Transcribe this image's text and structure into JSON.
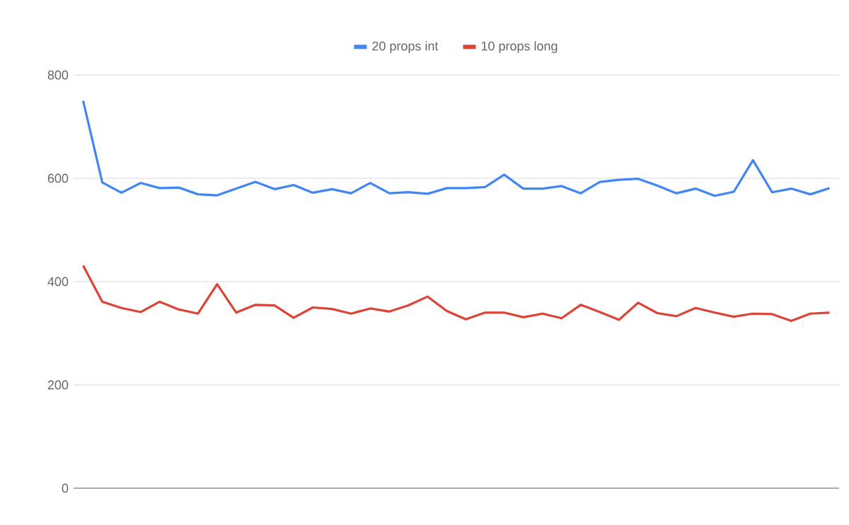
{
  "chart_data": {
    "type": "line",
    "categories": [
      null,
      null,
      null,
      null,
      null,
      null,
      null,
      null,
      null,
      null,
      null,
      null,
      null,
      null,
      null,
      null,
      null,
      null,
      null,
      null,
      null,
      null,
      null,
      null,
      null,
      null,
      null,
      null,
      null,
      null,
      null,
      null,
      null,
      null,
      null,
      null,
      null,
      null,
      null,
      null
    ],
    "series": [
      {
        "name": "20 props int",
        "color": "#4285f4",
        "values": [
          750,
          592,
          572,
          591,
          581,
          582,
          569,
          567,
          580,
          593,
          579,
          587,
          572,
          579,
          571,
          591,
          571,
          573,
          570,
          581,
          581,
          583,
          607,
          580,
          580,
          585,
          571,
          593,
          597,
          599,
          586,
          571,
          580,
          566,
          574,
          635,
          573,
          580,
          569,
          581
        ]
      },
      {
        "name": "10 props long",
        "color": "#db4437",
        "values": [
          431,
          361,
          349,
          341,
          361,
          346,
          338,
          395,
          340,
          355,
          354,
          330,
          350,
          347,
          338,
          348,
          342,
          354,
          371,
          343,
          327,
          340,
          340,
          331,
          338,
          329,
          355,
          341,
          326,
          359,
          339,
          333,
          349,
          340,
          332,
          338,
          337,
          324,
          338,
          340
        ]
      }
    ],
    "ylim": [
      0,
      800
    ],
    "yticks": [
      0,
      200,
      400,
      600,
      800
    ],
    "grid": "y",
    "legend": "top",
    "marker": "none",
    "line_style": "solid"
  }
}
